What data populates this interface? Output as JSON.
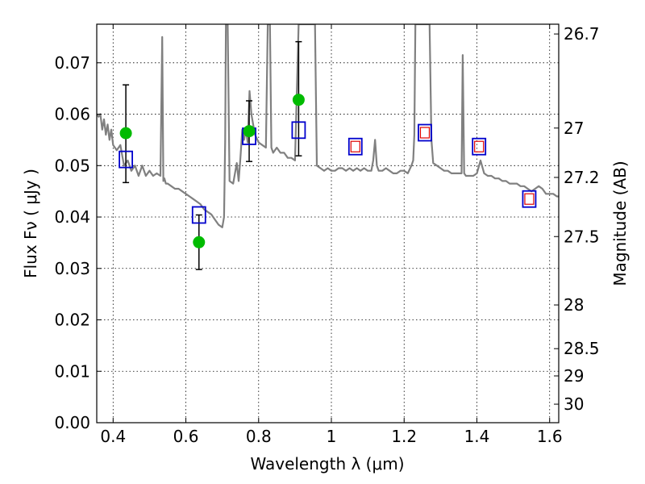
{
  "chart_data": {
    "type": "scatter",
    "title": "",
    "xlabel": "Wavelength  λ (μm)",
    "ylabel": "Flux  Fν  ( μJy )",
    "y2label": "Magnitude (AB)",
    "xlim": [
      0.355,
      1.625
    ],
    "ylim": [
      0.0,
      0.0775
    ],
    "grid": true,
    "x_ticks": [
      0.4,
      0.6,
      0.8,
      1.0,
      1.2,
      1.4,
      1.6
    ],
    "x_tick_labels": [
      "0.4",
      "0.6",
      "0.8",
      "1",
      "1.2",
      "1.4",
      "1.6"
    ],
    "y_ticks": [
      0.0,
      0.01,
      0.02,
      0.03,
      0.04,
      0.05,
      0.06,
      0.07
    ],
    "y_tick_labels": [
      "0.00",
      "0.01",
      "0.02",
      "0.03",
      "0.04",
      "0.05",
      "0.06",
      "0.07"
    ],
    "y2_ticks": [
      {
        "label": "26.7",
        "flux": 0.0756
      },
      {
        "label": "27",
        "flux": 0.0573
      },
      {
        "label": "27.2",
        "flux": 0.0477
      },
      {
        "label": "27.5",
        "flux": 0.0362
      },
      {
        "label": "28",
        "flux": 0.0229
      },
      {
        "label": "28.5",
        "flux": 0.0144
      },
      {
        "label": "29",
        "flux": 0.0091
      },
      {
        "label": "30",
        "flux": 0.0036
      }
    ],
    "series": [
      {
        "kind": "model_spectrum",
        "color": "#808080",
        "x": [
          0.355,
          0.36,
          0.365,
          0.37,
          0.375,
          0.38,
          0.385,
          0.39,
          0.395,
          0.4,
          0.41,
          0.42,
          0.43,
          0.44,
          0.45,
          0.46,
          0.47,
          0.48,
          0.49,
          0.5,
          0.51,
          0.52,
          0.53,
          0.535,
          0.538,
          0.541,
          0.545,
          0.55,
          0.56,
          0.57,
          0.58,
          0.59,
          0.6,
          0.61,
          0.62,
          0.63,
          0.64,
          0.65,
          0.66,
          0.67,
          0.68,
          0.69,
          0.7,
          0.705,
          0.708,
          0.71,
          0.712,
          0.715,
          0.72,
          0.73,
          0.74,
          0.745,
          0.75,
          0.755,
          0.76,
          0.765,
          0.77,
          0.775,
          0.78,
          0.785,
          0.79,
          0.8,
          0.81,
          0.82,
          0.825,
          0.828,
          0.831,
          0.835,
          0.84,
          0.85,
          0.86,
          0.87,
          0.88,
          0.89,
          0.9,
          0.91,
          0.92,
          0.925,
          0.928,
          0.931,
          0.935,
          0.94,
          0.945,
          0.948,
          0.951,
          0.955,
          0.96,
          0.97,
          0.98,
          0.99,
          1.0,
          1.01,
          1.02,
          1.03,
          1.04,
          1.05,
          1.06,
          1.07,
          1.08,
          1.09,
          1.1,
          1.11,
          1.115,
          1.12,
          1.125,
          1.13,
          1.14,
          1.15,
          1.16,
          1.17,
          1.18,
          1.19,
          1.2,
          1.21,
          1.22,
          1.225,
          1.228,
          1.231,
          1.235,
          1.24,
          1.245,
          1.25,
          1.255,
          1.26,
          1.265,
          1.27,
          1.275,
          1.28,
          1.29,
          1.3,
          1.31,
          1.32,
          1.33,
          1.34,
          1.35,
          1.355,
          1.358,
          1.361,
          1.365,
          1.37,
          1.38,
          1.39,
          1.4,
          1.41,
          1.42,
          1.43,
          1.44,
          1.45,
          1.46,
          1.47,
          1.48,
          1.49,
          1.5,
          1.51,
          1.52,
          1.53,
          1.54,
          1.55,
          1.56,
          1.57,
          1.58,
          1.59,
          1.6,
          1.61,
          1.62,
          1.625
        ],
        "y": [
          0.06,
          0.0595,
          0.06,
          0.057,
          0.059,
          0.056,
          0.058,
          0.055,
          0.057,
          0.054,
          0.053,
          0.054,
          0.05,
          0.051,
          0.049,
          0.05,
          0.048,
          0.05,
          0.048,
          0.049,
          0.048,
          0.0485,
          0.048,
          0.075,
          0.047,
          0.0475,
          0.0465,
          0.0465,
          0.046,
          0.0455,
          0.0455,
          0.045,
          0.0445,
          0.044,
          0.0435,
          0.043,
          0.0425,
          0.0415,
          0.041,
          0.0405,
          0.0395,
          0.0385,
          0.038,
          0.04,
          0.055,
          0.0775,
          0.0775,
          0.0775,
          0.047,
          0.0465,
          0.0505,
          0.047,
          0.0515,
          0.057,
          0.055,
          0.057,
          0.0545,
          0.0645,
          0.06,
          0.058,
          0.056,
          0.0545,
          0.054,
          0.0535,
          0.0775,
          0.0775,
          0.0775,
          0.0535,
          0.0525,
          0.0535,
          0.0525,
          0.0525,
          0.0515,
          0.0515,
          0.051,
          0.0775,
          0.0775,
          0.0775,
          0.0775,
          0.0775,
          0.0775,
          0.0775,
          0.0775,
          0.0775,
          0.0775,
          0.0775,
          0.05,
          0.0495,
          0.049,
          0.0495,
          0.049,
          0.049,
          0.0495,
          0.0495,
          0.049,
          0.0495,
          0.049,
          0.0495,
          0.049,
          0.0495,
          0.049,
          0.049,
          0.051,
          0.055,
          0.05,
          0.049,
          0.049,
          0.0495,
          0.049,
          0.0485,
          0.0485,
          0.049,
          0.049,
          0.0485,
          0.05,
          0.051,
          0.056,
          0.0775,
          0.0775,
          0.0775,
          0.0775,
          0.0775,
          0.0775,
          0.0775,
          0.0775,
          0.0775,
          0.055,
          0.0505,
          0.05,
          0.0495,
          0.049,
          0.049,
          0.0485,
          0.0485,
          0.0485,
          0.0485,
          0.0485,
          0.0715,
          0.0485,
          0.048,
          0.048,
          0.048,
          0.0485,
          0.051,
          0.0485,
          0.048,
          0.048,
          0.0475,
          0.0475,
          0.047,
          0.047,
          0.0465,
          0.0465,
          0.0465,
          0.046,
          0.046,
          0.0455,
          0.045,
          0.0455,
          0.046,
          0.0455,
          0.0445,
          0.0445,
          0.0445,
          0.044,
          0.044
        ]
      },
      {
        "kind": "observed",
        "marker": "circle",
        "color": "#00bb00",
        "x": [
          0.435,
          0.636,
          0.774,
          0.91
        ],
        "y": [
          0.0563,
          0.0351,
          0.0567,
          0.0628
        ],
        "yerr_low": [
          0.0467,
          0.0298,
          0.0508,
          0.0519
        ],
        "yerr_high": [
          0.0657,
          0.0404,
          0.0626,
          0.0741
        ]
      },
      {
        "kind": "model_photometry",
        "marker": "open-square",
        "color": "#0000cc",
        "x": [
          0.435,
          0.636,
          0.774,
          0.91,
          1.066,
          1.257,
          1.406,
          1.544
        ],
        "y": [
          0.0512,
          0.0404,
          0.0557,
          0.0569,
          0.0537,
          0.0564,
          0.0537,
          0.0435
        ]
      },
      {
        "kind": "model_photometry_inner",
        "marker": "open-square-small",
        "color": "#dd0000",
        "x": [
          1.066,
          1.257,
          1.406,
          1.544
        ],
        "y": [
          0.0537,
          0.0564,
          0.0537,
          0.0435
        ]
      }
    ]
  }
}
